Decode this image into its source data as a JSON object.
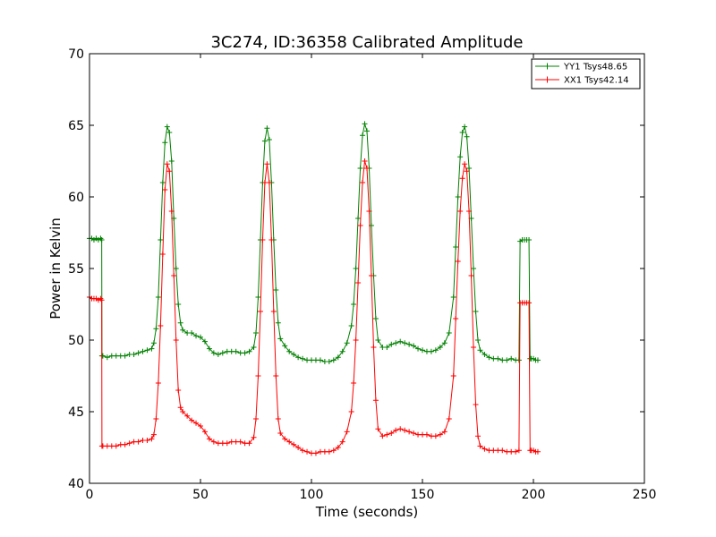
{
  "chart_data": {
    "type": "line",
    "title": "3C274, ID:36358 Calibrated Amplitude",
    "xlabel": "Time (seconds)",
    "ylabel": "Power in Kelvin",
    "xlim": [
      0,
      250
    ],
    "ylim": [
      40,
      70
    ],
    "xticks": [
      0,
      50,
      100,
      150,
      200,
      250
    ],
    "yticks": [
      40,
      45,
      50,
      55,
      60,
      65,
      70
    ],
    "grid": false,
    "legend_position": "top-right",
    "marker": "+",
    "series": [
      {
        "name": "YY1 Tsys48.65",
        "color": "#008000",
        "points": [
          [
            0.0,
            57.1
          ],
          [
            1.0,
            57.1
          ],
          [
            2.0,
            57.0
          ],
          [
            3.0,
            57.1
          ],
          [
            4.0,
            57.0
          ],
          [
            5.0,
            57.1
          ],
          [
            5.5,
            57.0
          ],
          [
            5.6,
            48.9
          ],
          [
            6.0,
            48.9
          ],
          [
            8,
            48.8
          ],
          [
            10,
            48.9
          ],
          [
            12,
            48.9
          ],
          [
            14,
            48.9
          ],
          [
            16,
            48.9
          ],
          [
            18,
            49.0
          ],
          [
            20,
            49.0
          ],
          [
            22,
            49.1
          ],
          [
            24,
            49.2
          ],
          [
            26,
            49.3
          ],
          [
            28,
            49.4
          ],
          [
            29,
            49.8
          ],
          [
            30,
            50.8
          ],
          [
            31,
            53.0
          ],
          [
            32,
            57.0
          ],
          [
            33,
            61.0
          ],
          [
            34,
            63.8
          ],
          [
            35,
            64.9
          ],
          [
            36,
            64.5
          ],
          [
            37,
            62.5
          ],
          [
            38,
            58.5
          ],
          [
            39,
            55.0
          ],
          [
            40,
            52.5
          ],
          [
            41,
            51.2
          ],
          [
            42,
            50.7
          ],
          [
            44,
            50.5
          ],
          [
            46,
            50.5
          ],
          [
            48,
            50.3
          ],
          [
            50,
            50.2
          ],
          [
            52,
            49.9
          ],
          [
            54,
            49.4
          ],
          [
            56,
            49.1
          ],
          [
            58,
            49.0
          ],
          [
            60,
            49.1
          ],
          [
            62,
            49.2
          ],
          [
            64,
            49.2
          ],
          [
            66,
            49.2
          ],
          [
            68,
            49.1
          ],
          [
            70,
            49.1
          ],
          [
            72,
            49.2
          ],
          [
            74,
            49.5
          ],
          [
            75,
            50.5
          ],
          [
            76,
            53.0
          ],
          [
            77,
            57.0
          ],
          [
            78,
            61.0
          ],
          [
            79,
            63.9
          ],
          [
            80,
            64.8
          ],
          [
            81,
            64.0
          ],
          [
            82,
            61.0
          ],
          [
            83,
            57.0
          ],
          [
            84,
            53.5
          ],
          [
            85,
            51.2
          ],
          [
            86,
            50.1
          ],
          [
            88,
            49.6
          ],
          [
            90,
            49.2
          ],
          [
            92,
            49.0
          ],
          [
            94,
            48.8
          ],
          [
            96,
            48.7
          ],
          [
            98,
            48.6
          ],
          [
            100,
            48.6
          ],
          [
            102,
            48.6
          ],
          [
            104,
            48.6
          ],
          [
            106,
            48.5
          ],
          [
            108,
            48.5
          ],
          [
            110,
            48.6
          ],
          [
            112,
            48.8
          ],
          [
            114,
            49.2
          ],
          [
            116,
            49.8
          ],
          [
            118,
            51.0
          ],
          [
            119,
            52.5
          ],
          [
            120,
            55.0
          ],
          [
            121,
            58.5
          ],
          [
            122,
            62.0
          ],
          [
            123,
            64.3
          ],
          [
            124,
            65.1
          ],
          [
            125,
            64.6
          ],
          [
            126,
            62.0
          ],
          [
            127,
            58.0
          ],
          [
            128,
            54.5
          ],
          [
            129,
            51.5
          ],
          [
            130,
            50.0
          ],
          [
            132,
            49.5
          ],
          [
            134,
            49.5
          ],
          [
            136,
            49.7
          ],
          [
            138,
            49.8
          ],
          [
            140,
            49.9
          ],
          [
            142,
            49.8
          ],
          [
            144,
            49.7
          ],
          [
            146,
            49.6
          ],
          [
            148,
            49.4
          ],
          [
            150,
            49.3
          ],
          [
            152,
            49.2
          ],
          [
            154,
            49.2
          ],
          [
            156,
            49.3
          ],
          [
            158,
            49.5
          ],
          [
            160,
            49.8
          ],
          [
            162,
            50.5
          ],
          [
            164,
            53.0
          ],
          [
            165,
            56.5
          ],
          [
            166,
            60.0
          ],
          [
            167,
            62.8
          ],
          [
            168,
            64.5
          ],
          [
            169,
            64.9
          ],
          [
            170,
            64.2
          ],
          [
            171,
            62.0
          ],
          [
            172,
            58.5
          ],
          [
            173,
            55.0
          ],
          [
            174,
            52.0
          ],
          [
            175,
            50.0
          ],
          [
            176,
            49.3
          ],
          [
            178,
            49.0
          ],
          [
            180,
            48.8
          ],
          [
            182,
            48.7
          ],
          [
            184,
            48.7
          ],
          [
            186,
            48.6
          ],
          [
            188,
            48.6
          ],
          [
            190,
            48.7
          ],
          [
            192,
            48.6
          ],
          [
            193.5,
            48.6
          ],
          [
            194.0,
            56.9
          ],
          [
            195,
            57.0
          ],
          [
            196,
            57.0
          ],
          [
            197,
            57.0
          ],
          [
            198,
            57.0
          ],
          [
            198.5,
            48.7
          ],
          [
            199,
            48.7
          ],
          [
            200,
            48.7
          ],
          [
            201,
            48.6
          ],
          [
            202,
            48.6
          ]
        ]
      },
      {
        "name": "XX1 Tsys42.14",
        "color": "#ff0000",
        "points": [
          [
            0.0,
            53.0
          ],
          [
            1.0,
            52.9
          ],
          [
            2.0,
            52.9
          ],
          [
            3.0,
            52.9
          ],
          [
            4.0,
            52.8
          ],
          [
            5.0,
            52.9
          ],
          [
            5.5,
            52.8
          ],
          [
            5.6,
            42.6
          ],
          [
            6.0,
            42.6
          ],
          [
            8,
            42.6
          ],
          [
            10,
            42.6
          ],
          [
            12,
            42.6
          ],
          [
            14,
            42.7
          ],
          [
            16,
            42.7
          ],
          [
            18,
            42.8
          ],
          [
            20,
            42.9
          ],
          [
            22,
            42.9
          ],
          [
            24,
            43.0
          ],
          [
            26,
            43.0
          ],
          [
            28,
            43.1
          ],
          [
            29,
            43.4
          ],
          [
            30,
            44.5
          ],
          [
            31,
            47.0
          ],
          [
            32,
            51.0
          ],
          [
            33,
            56.0
          ],
          [
            34,
            60.5
          ],
          [
            35,
            62.3
          ],
          [
            36,
            61.8
          ],
          [
            37,
            59.0
          ],
          [
            38,
            54.5
          ],
          [
            39,
            50.0
          ],
          [
            40,
            46.5
          ],
          [
            41,
            45.3
          ],
          [
            42,
            45.0
          ],
          [
            44,
            44.7
          ],
          [
            46,
            44.4
          ],
          [
            48,
            44.2
          ],
          [
            50,
            44.0
          ],
          [
            52,
            43.6
          ],
          [
            54,
            43.1
          ],
          [
            56,
            42.9
          ],
          [
            58,
            42.8
          ],
          [
            60,
            42.8
          ],
          [
            62,
            42.8
          ],
          [
            64,
            42.9
          ],
          [
            66,
            42.9
          ],
          [
            68,
            42.9
          ],
          [
            70,
            42.8
          ],
          [
            72,
            42.8
          ],
          [
            74,
            43.2
          ],
          [
            75,
            44.5
          ],
          [
            76,
            47.5
          ],
          [
            77,
            52.0
          ],
          [
            78,
            57.0
          ],
          [
            79,
            61.0
          ],
          [
            80,
            62.3
          ],
          [
            81,
            61.0
          ],
          [
            82,
            57.0
          ],
          [
            83,
            52.0
          ],
          [
            84,
            47.5
          ],
          [
            85,
            44.5
          ],
          [
            86,
            43.5
          ],
          [
            88,
            43.1
          ],
          [
            90,
            42.9
          ],
          [
            92,
            42.7
          ],
          [
            94,
            42.5
          ],
          [
            96,
            42.3
          ],
          [
            98,
            42.2
          ],
          [
            100,
            42.1
          ],
          [
            102,
            42.1
          ],
          [
            104,
            42.2
          ],
          [
            106,
            42.2
          ],
          [
            108,
            42.2
          ],
          [
            110,
            42.3
          ],
          [
            112,
            42.5
          ],
          [
            114,
            42.9
          ],
          [
            116,
            43.6
          ],
          [
            118,
            45.0
          ],
          [
            119,
            47.0
          ],
          [
            120,
            50.0
          ],
          [
            121,
            54.0
          ],
          [
            122,
            58.0
          ],
          [
            123,
            61.0
          ],
          [
            124,
            62.5
          ],
          [
            125,
            62.0
          ],
          [
            126,
            59.0
          ],
          [
            127,
            54.5
          ],
          [
            128,
            49.5
          ],
          [
            129,
            45.8
          ],
          [
            130,
            43.8
          ],
          [
            132,
            43.3
          ],
          [
            134,
            43.4
          ],
          [
            136,
            43.5
          ],
          [
            138,
            43.7
          ],
          [
            140,
            43.8
          ],
          [
            142,
            43.7
          ],
          [
            144,
            43.6
          ],
          [
            146,
            43.5
          ],
          [
            148,
            43.4
          ],
          [
            150,
            43.4
          ],
          [
            152,
            43.4
          ],
          [
            154,
            43.3
          ],
          [
            156,
            43.3
          ],
          [
            158,
            43.4
          ],
          [
            160,
            43.6
          ],
          [
            162,
            44.5
          ],
          [
            164,
            47.5
          ],
          [
            165,
            51.5
          ],
          [
            166,
            55.5
          ],
          [
            167,
            59.0
          ],
          [
            168,
            61.3
          ],
          [
            169,
            62.3
          ],
          [
            170,
            61.8
          ],
          [
            171,
            59.0
          ],
          [
            172,
            54.5
          ],
          [
            173,
            49.5
          ],
          [
            174,
            45.5
          ],
          [
            175,
            43.3
          ],
          [
            176,
            42.6
          ],
          [
            178,
            42.4
          ],
          [
            180,
            42.3
          ],
          [
            182,
            42.3
          ],
          [
            184,
            42.3
          ],
          [
            186,
            42.3
          ],
          [
            188,
            42.2
          ],
          [
            190,
            42.2
          ],
          [
            192,
            42.2
          ],
          [
            193.5,
            42.3
          ],
          [
            194.0,
            52.6
          ],
          [
            195,
            52.6
          ],
          [
            196,
            52.6
          ],
          [
            197,
            52.6
          ],
          [
            198,
            52.6
          ],
          [
            198.5,
            42.3
          ],
          [
            199,
            42.3
          ],
          [
            200,
            42.3
          ],
          [
            201,
            42.2
          ],
          [
            202,
            42.2
          ]
        ]
      }
    ]
  }
}
